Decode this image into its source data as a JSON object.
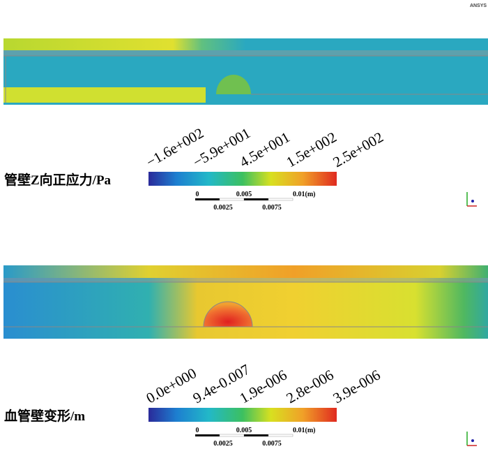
{
  "logo": "ANSYS",
  "panels": [
    {
      "legend_title": "管壁Z向正应力/Pa",
      "legend_labels": [
        "−1.6e+002",
        "−5.9e+001",
        "4.5e+001",
        "1.5e+002",
        "2.5e+002"
      ],
      "scale_top": [
        "0",
        "0.005",
        "0.01(m)"
      ],
      "scale_bottom": [
        "0.0025",
        "0.0075"
      ]
    },
    {
      "legend_title": "血管壁变形/m",
      "legend_labels": [
        "0.0e+000",
        "9.4e-0.007",
        "1.9e-006",
        "2.8e-006",
        "3.9e-006"
      ],
      "scale_top": [
        "0",
        "0.005",
        "0.01(m)"
      ],
      "scale_bottom": [
        "0.0025",
        "0.0075"
      ]
    }
  ]
}
